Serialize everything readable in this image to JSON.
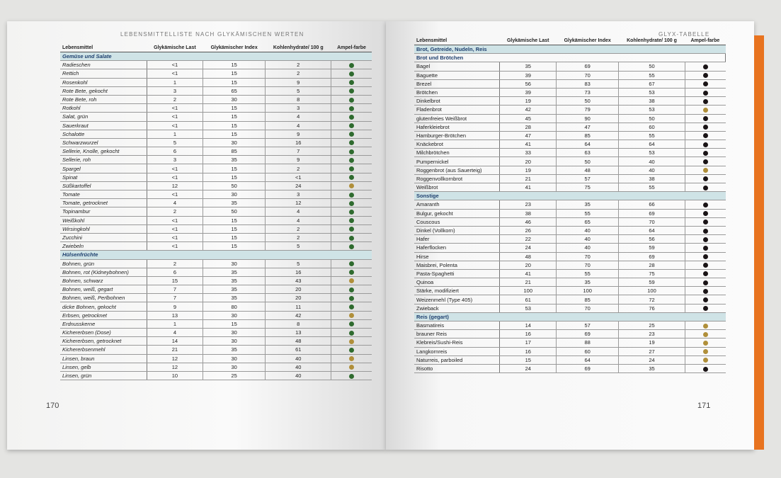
{
  "left": {
    "running_head": "LEBENSMITTELLISTE NACH GLYKÄMISCHEN WERTEN",
    "page_number": "170"
  },
  "right": {
    "running_head": "GLYX-TABELLE",
    "page_number": "171"
  },
  "columns": [
    "Lebensmittel",
    "Glykämische Last",
    "Glykämischer Index",
    "Kohlenhydrate/ 100 g",
    "Ampel-farbe"
  ],
  "colors": {
    "green": "#2f6b2f",
    "yellow": "#b08f3a",
    "black": "#1a1416",
    "section_bg": "#cfe3e6",
    "page_edge": "#e8731f"
  },
  "left_sections": [
    {
      "title": "Gemüse und Salate",
      "rows": [
        [
          "Radieschen",
          "<1",
          "15",
          "2",
          "green"
        ],
        [
          "Rettich",
          "<1",
          "15",
          "2",
          "green"
        ],
        [
          "Rosenkohl",
          "1",
          "15",
          "9",
          "green"
        ],
        [
          "Rote Bete, gekocht",
          "3",
          "65",
          "5",
          "green"
        ],
        [
          "Rote Bete, roh",
          "2",
          "30",
          "8",
          "green"
        ],
        [
          "Rotkohl",
          "<1",
          "15",
          "3",
          "green"
        ],
        [
          "Salat, grün",
          "<1",
          "15",
          "4",
          "green"
        ],
        [
          "Sauerkraut",
          "<1",
          "15",
          "4",
          "green"
        ],
        [
          "Schalotte",
          "1",
          "15",
          "9",
          "green"
        ],
        [
          "Schwarzwurzel",
          "5",
          "30",
          "16",
          "green"
        ],
        [
          "Sellerie, Knolle, gekocht",
          "6",
          "85",
          "7",
          "green"
        ],
        [
          "Sellerie, roh",
          "3",
          "35",
          "9",
          "green"
        ],
        [
          "Spargel",
          "<1",
          "15",
          "2",
          "green"
        ],
        [
          "Spinat",
          "<1",
          "15",
          "<1",
          "green"
        ],
        [
          "Süßkartoffel",
          "12",
          "50",
          "24",
          "yellow"
        ],
        [
          "Tomate",
          "<1",
          "30",
          "3",
          "green"
        ],
        [
          "Tomate, getrocknet",
          "4",
          "35",
          "12",
          "green"
        ],
        [
          "Topinambur",
          "2",
          "50",
          "4",
          "green"
        ],
        [
          "Weißkohl",
          "<1",
          "15",
          "4",
          "green"
        ],
        [
          "Wirsingkohl",
          "<1",
          "15",
          "2",
          "green"
        ],
        [
          "Zucchini",
          "<1",
          "15",
          "2",
          "green"
        ],
        [
          "Zwiebeln",
          "<1",
          "15",
          "5",
          "green"
        ]
      ]
    },
    {
      "title": "Hülsenfrüchte",
      "rows": [
        [
          "Bohnen, grün",
          "2",
          "30",
          "5",
          "green"
        ],
        [
          "Bohnen, rot (Kidneybohnen)",
          "6",
          "35",
          "16",
          "green"
        ],
        [
          "Bohnen, schwarz",
          "15",
          "35",
          "43",
          "yellow"
        ],
        [
          "Bohnen, weiß, gegart",
          "7",
          "35",
          "20",
          "green"
        ],
        [
          "Bohnen, weiß, Perlbohnen",
          "7",
          "35",
          "20",
          "green"
        ],
        [
          "dicke Bohnen, gekocht",
          "9",
          "80",
          "11",
          "green"
        ],
        [
          "Erbsen, getrocknet",
          "13",
          "30",
          "42",
          "yellow"
        ],
        [
          "Erdnusskerne",
          "1",
          "15",
          "8",
          "green"
        ],
        [
          "Kichererbsen (Dose)",
          "4",
          "30",
          "13",
          "green"
        ],
        [
          "Kichererbsen, getrocknet",
          "14",
          "30",
          "48",
          "yellow"
        ],
        [
          "Kichererbsenmehl",
          "21",
          "35",
          "61",
          "green"
        ],
        [
          "Linsen, braun",
          "12",
          "30",
          "40",
          "yellow"
        ],
        [
          "Linsen, gelb",
          "12",
          "30",
          "40",
          "yellow"
        ],
        [
          "Linsen, grün",
          "10",
          "25",
          "40",
          "green"
        ]
      ]
    }
  ],
  "right_group": "Brot, Getreide, Nudeln, Reis",
  "right_sections": [
    {
      "title": "Brot und Brötchen",
      "sub": true,
      "rows": [
        [
          "Bagel",
          "35",
          "69",
          "50",
          "black"
        ],
        [
          "Baguette",
          "39",
          "70",
          "55",
          "black"
        ],
        [
          "Brezel",
          "56",
          "83",
          "67",
          "black"
        ],
        [
          "Brötchen",
          "39",
          "73",
          "53",
          "black"
        ],
        [
          "Dinkelbrot",
          "19",
          "50",
          "38",
          "black"
        ],
        [
          "Fladenbrot",
          "42",
          "79",
          "53",
          "yellow"
        ],
        [
          "glutenfreies Weißbrot",
          "45",
          "90",
          "50",
          "black"
        ],
        [
          "Haferkleiebrot",
          "28",
          "47",
          "60",
          "black"
        ],
        [
          "Hamburger-Brötchen",
          "47",
          "85",
          "55",
          "black"
        ],
        [
          "Knäckebrot",
          "41",
          "64",
          "64",
          "black"
        ],
        [
          "Milchbrötchen",
          "33",
          "63",
          "53",
          "black"
        ],
        [
          "Pumpernickel",
          "20",
          "50",
          "40",
          "black"
        ],
        [
          "Roggenbrot (aus Sauerteig)",
          "19",
          "48",
          "40",
          "yellow"
        ],
        [
          "Roggenvollkornbrot",
          "21",
          "57",
          "38",
          "black"
        ],
        [
          "Weißbrot",
          "41",
          "75",
          "55",
          "black"
        ]
      ]
    },
    {
      "title": "Sonstige",
      "rows": [
        [
          "Amaranth",
          "23",
          "35",
          "66",
          "black"
        ],
        [
          "Bulgur, gekocht",
          "38",
          "55",
          "69",
          "black"
        ],
        [
          "Couscous",
          "46",
          "65",
          "70",
          "black"
        ],
        [
          "Dinkel (Vollkorn)",
          "26",
          "40",
          "64",
          "black"
        ],
        [
          "Hafer",
          "22",
          "40",
          "56",
          "black"
        ],
        [
          "Haferflocken",
          "24",
          "40",
          "59",
          "black"
        ],
        [
          "Hirse",
          "48",
          "70",
          "69",
          "black"
        ],
        [
          "Maisbrei, Polenta",
          "20",
          "70",
          "28",
          "black"
        ],
        [
          "Pasta-Spaghetti",
          "41",
          "55",
          "75",
          "black"
        ],
        [
          "Quinoa",
          "21",
          "35",
          "59",
          "black"
        ],
        [
          "Stärke, modifiziert",
          "100",
          "100",
          "100",
          "black"
        ],
        [
          "Weizenmehl (Type 405)",
          "61",
          "85",
          "72",
          "black"
        ],
        [
          "Zwieback",
          "53",
          "70",
          "76",
          "black"
        ]
      ]
    },
    {
      "title": "Reis (gegart)",
      "rows": [
        [
          "Basmatireis",
          "14",
          "57",
          "25",
          "yellow"
        ],
        [
          "brauner Reis",
          "16",
          "69",
          "23",
          "yellow"
        ],
        [
          "Klebreis/Sushi-Reis",
          "17",
          "88",
          "19",
          "yellow"
        ],
        [
          "Langkornreis",
          "16",
          "60",
          "27",
          "yellow"
        ],
        [
          "Naturreis, parboiled",
          "15",
          "64",
          "24",
          "yellow"
        ],
        [
          "Risotto",
          "24",
          "69",
          "35",
          "black"
        ]
      ]
    }
  ]
}
